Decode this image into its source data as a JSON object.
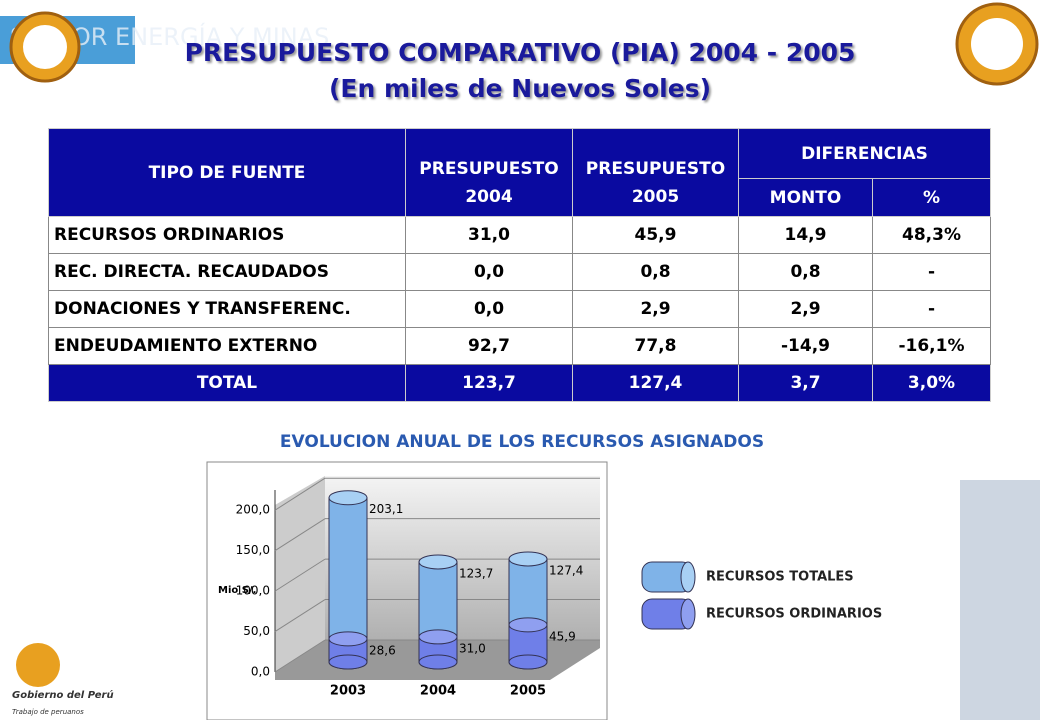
{
  "header": {
    "banner": "SECTOR ENERGÍA Y MINAS",
    "title": "PRESUPUESTO COMPARATIVO (PIA)  2004 - 2005",
    "subtitle": "(En miles de Nuevos Soles)"
  },
  "table": {
    "header_row1": [
      "TIPO DE FUENTE",
      "PRESUPUESTO",
      "PRESUPUESTO",
      "DIFERENCIAS"
    ],
    "header_row2": [
      "2004",
      "2005",
      "MONTO",
      "%"
    ],
    "rows": [
      [
        "RECURSOS ORDINARIOS",
        "31,0",
        "45,9",
        "14,9",
        "48,3%"
      ],
      [
        "REC. DIRECTA. RECAUDADOS",
        "0,0",
        "0,8",
        "0,8",
        "-"
      ],
      [
        "DONACIONES Y TRANSFERENC.",
        "0,0",
        "2,9",
        "2,9",
        "-"
      ],
      [
        "ENDEUDAMIENTO EXTERNO",
        "92,7",
        "77,8",
        "-14,9",
        "-16,1%"
      ]
    ],
    "total": [
      "TOTAL",
      "123,7",
      "127,4",
      "3,7",
      "3,0%"
    ]
  },
  "chart_data": {
    "type": "bar",
    "title": "EVOLUCION ANUAL DE LOS RECURSOS ASIGNADOS",
    "y_label": "Mio S/.",
    "categories": [
      "2003",
      "2004",
      "2005"
    ],
    "series": [
      {
        "name": "RECURSOS TOTALES",
        "color": "#7fb3e8",
        "values": [
          203.1,
          123.7,
          127.4
        ],
        "value_labels": [
          "203,1",
          "123,7",
          "127,4"
        ]
      },
      {
        "name": "RECURSOS ORDINARIOS",
        "color": "#6f7fe8",
        "values": [
          28.6,
          31.0,
          45.9
        ],
        "value_labels": [
          "28,6",
          "31,0",
          "45,9"
        ]
      }
    ],
    "ylim": [
      0,
      225
    ],
    "yticks": [
      {
        "value": 0,
        "label": "0,0"
      },
      {
        "value": 50,
        "label": "50,0"
      },
      {
        "value": 100,
        "label": "100,0"
      },
      {
        "value": 150,
        "label": "150,0"
      },
      {
        "value": 200,
        "label": "200,0"
      }
    ]
  },
  "footer": {
    "logo": "Gobierno del Perú",
    "motto": "Trabajo de peruanos"
  }
}
